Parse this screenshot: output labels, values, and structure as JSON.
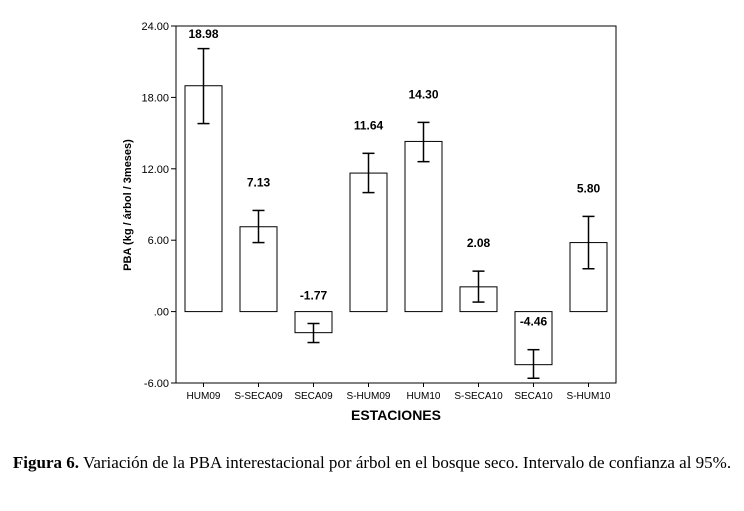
{
  "chart_data": {
    "type": "bar",
    "xlabel": "ESTACIONES",
    "ylabel": "PBA (kg / árbol / 3meses)",
    "ylim": [
      -6,
      24
    ],
    "yticks": [
      -6,
      0,
      6,
      12,
      18,
      24
    ],
    "ytick_labels": [
      "-6.00",
      ".00",
      "6.00",
      "12.00",
      "18.00",
      "24.00"
    ],
    "categories": [
      "HUM09",
      "S-SECA09",
      "SECA09",
      "S-HUM09",
      "HUM10",
      "S-SECA10",
      "SECA10",
      "S-HUM10"
    ],
    "values": [
      18.98,
      7.13,
      -1.77,
      11.64,
      14.3,
      2.08,
      -4.46,
      5.8
    ],
    "value_labels": [
      "18.98",
      "7.13",
      "-1.77",
      "11.64",
      "14.30",
      "2.08",
      "-4.46",
      "5.80"
    ],
    "error_low": [
      15.8,
      5.8,
      -2.6,
      10.0,
      12.6,
      0.8,
      -5.6,
      3.6
    ],
    "error_high": [
      22.1,
      8.5,
      -1.0,
      13.3,
      15.9,
      3.4,
      -3.2,
      8.0
    ],
    "grid": false,
    "legend": "none"
  },
  "caption": {
    "label": "Figura 6.",
    "text": " Variación de la PBA interestacional por árbol en el bosque seco. Intervalo de confianza al 95%."
  }
}
